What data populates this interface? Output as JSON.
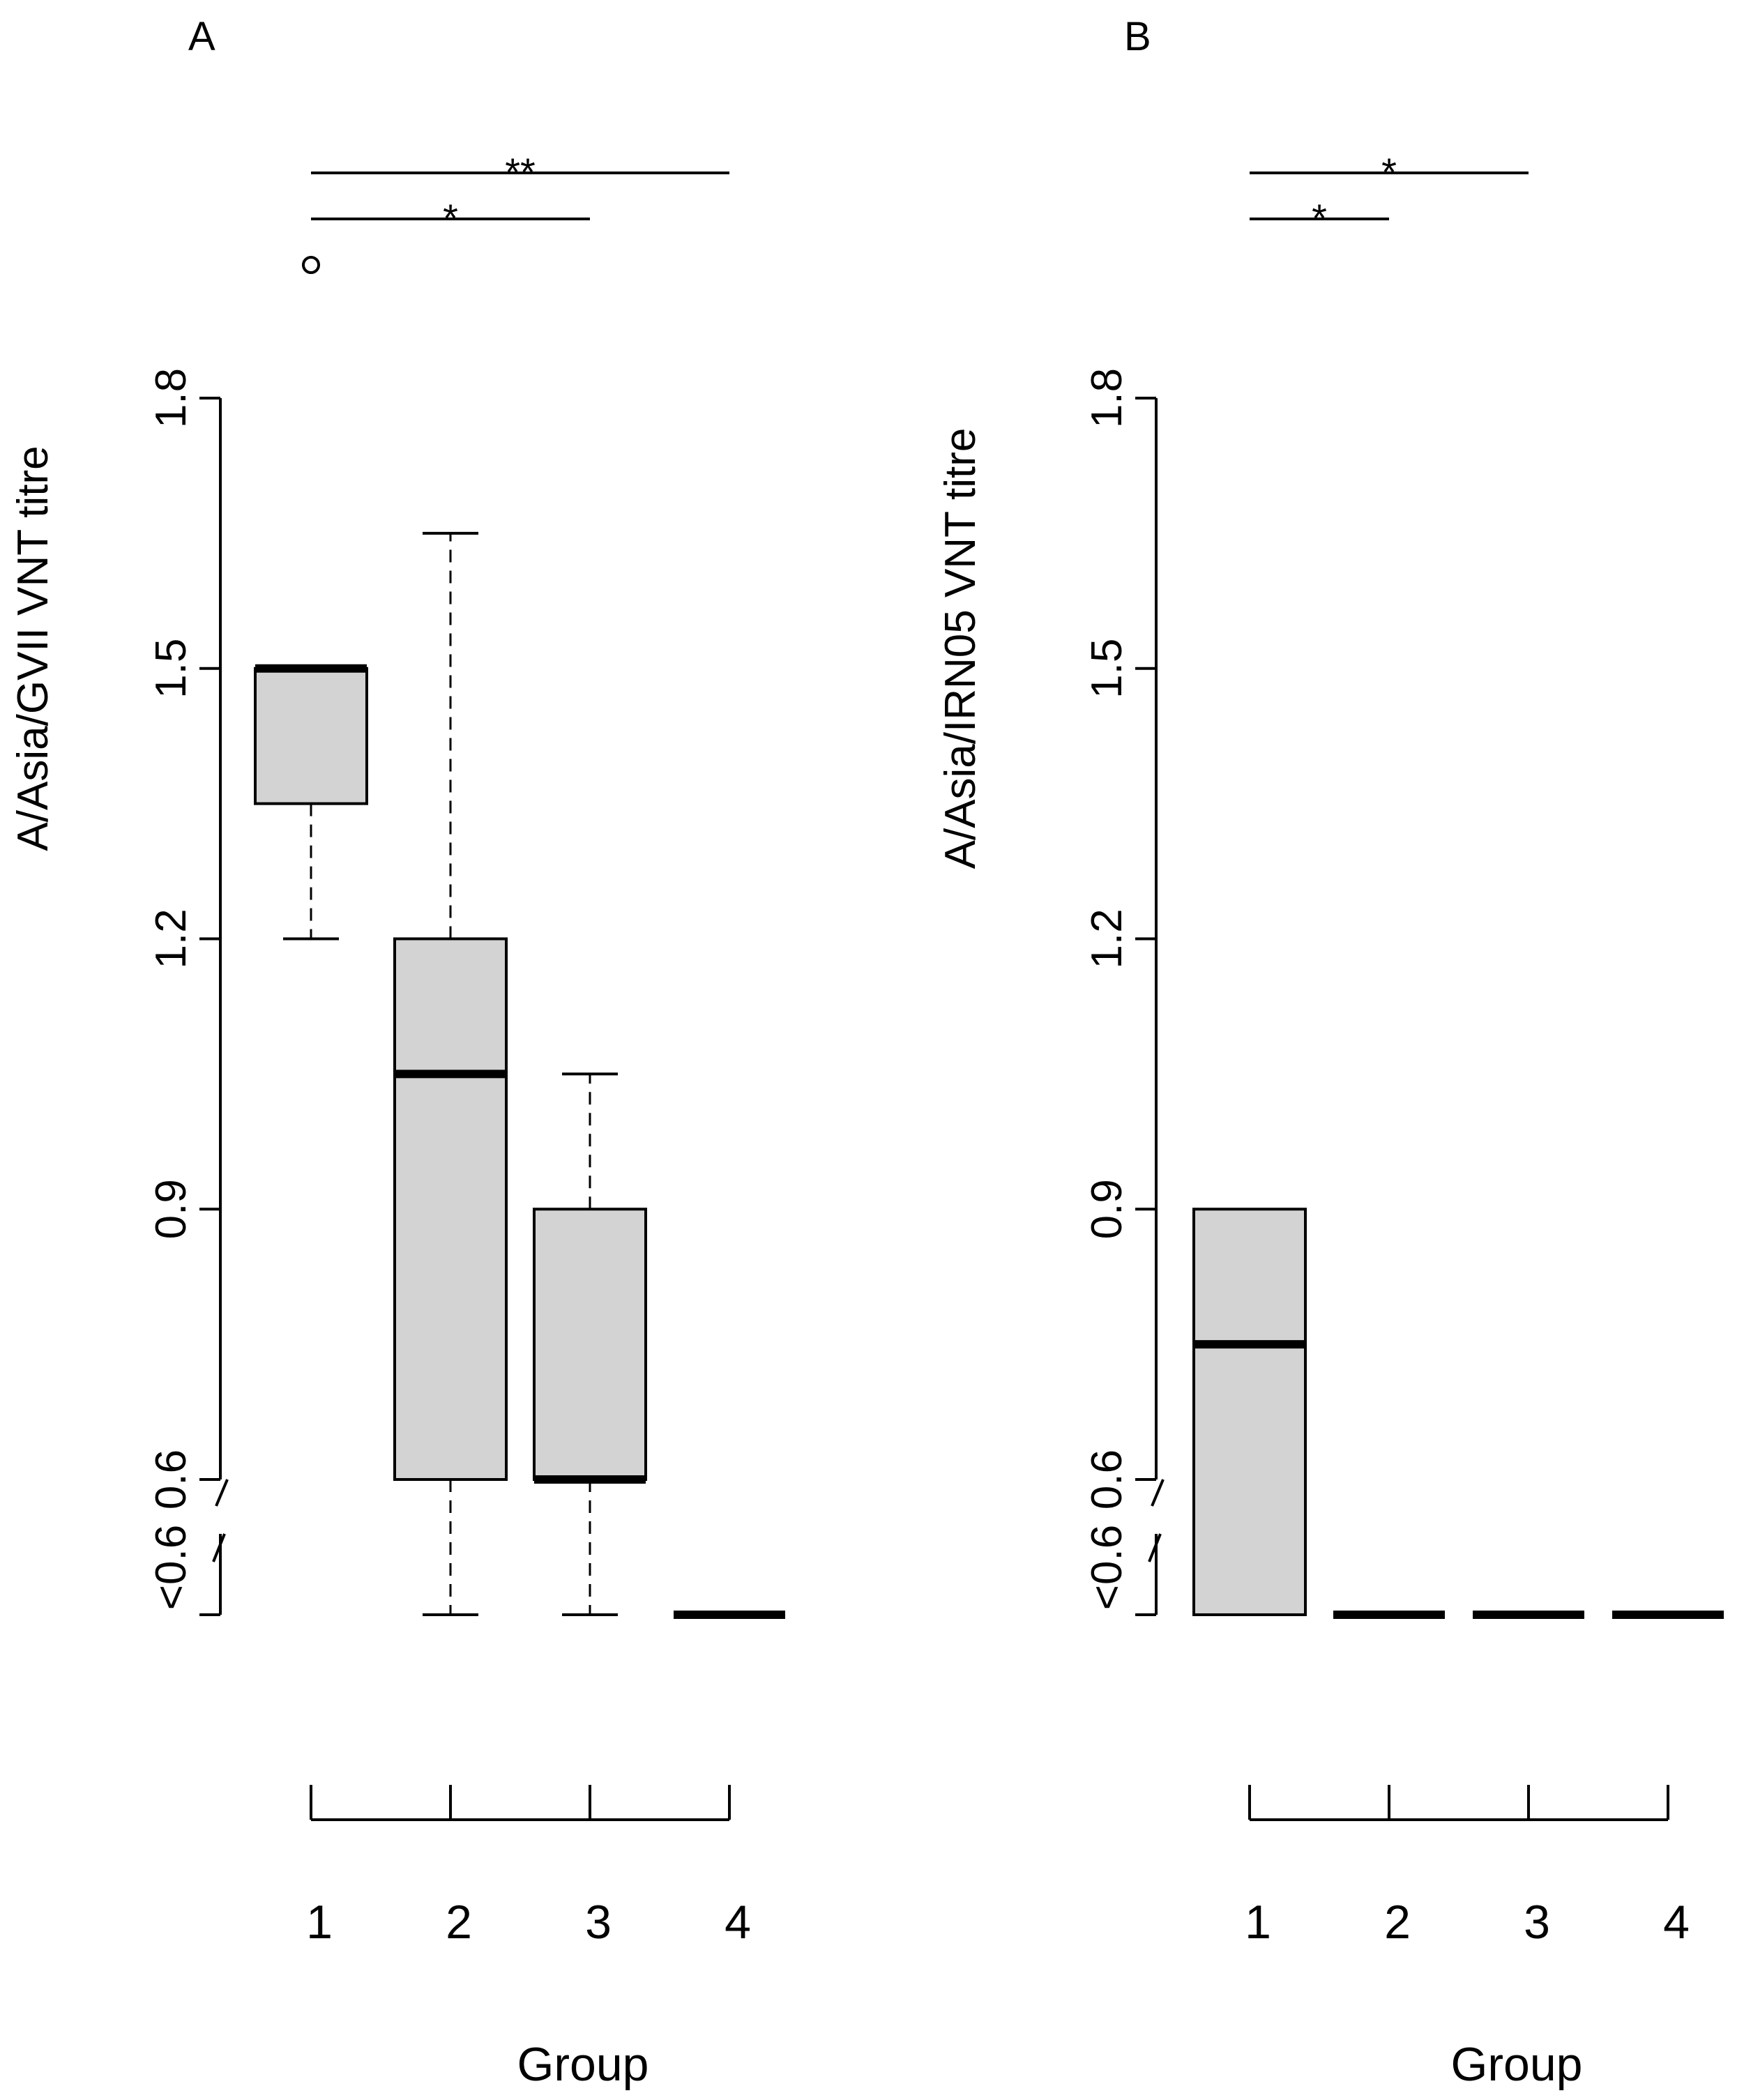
{
  "chart_data": [
    {
      "panel_label": "A",
      "type": "boxplot",
      "ylabel": "A/Asia/GVII VNT titre",
      "xlabel": "Group",
      "categories": [
        "1",
        "2",
        "3",
        "4"
      ],
      "y_ticks": [
        0.6,
        0.9,
        1.2,
        1.5,
        1.8
      ],
      "y_tick_labels": [
        "0.6",
        "0.9",
        "1.2",
        "1.5",
        "1.8"
      ],
      "below_limit_label": "<0.6",
      "axis_break": true,
      "boxes": [
        {
          "group": "1",
          "whisker_low": 1.2,
          "q1": 1.35,
          "median": 1.5,
          "q3": 1.5,
          "whisker_high": 1.5,
          "outliers": [
            1.95
          ]
        },
        {
          "group": "2",
          "whisker_low": 0.45,
          "q1": 0.6,
          "median": 1.05,
          "q3": 1.2,
          "whisker_high": 1.65,
          "outliers": []
        },
        {
          "group": "3",
          "whisker_low": 0.45,
          "q1": 0.6,
          "median": 0.6,
          "q3": 0.9,
          "whisker_high": 1.05,
          "outliers": []
        },
        {
          "group": "4",
          "whisker_low": 0.45,
          "q1": 0.45,
          "median": 0.45,
          "q3": 0.45,
          "whisker_high": 0.45,
          "outliers": []
        }
      ],
      "significance": [
        {
          "from": "1",
          "to": "3",
          "label": "*"
        },
        {
          "from": "1",
          "to": "4",
          "label": "**"
        }
      ]
    },
    {
      "panel_label": "B",
      "type": "boxplot",
      "ylabel": "A/Asia/IRN05 VNT titre",
      "xlabel": "Group",
      "categories": [
        "1",
        "2",
        "3",
        "4"
      ],
      "y_ticks": [
        0.6,
        0.9,
        1.2,
        1.5,
        1.8
      ],
      "y_tick_labels": [
        "0.6",
        "0.9",
        "1.2",
        "1.5",
        "1.8"
      ],
      "below_limit_label": "<0.6",
      "axis_break": true,
      "boxes": [
        {
          "group": "1",
          "whisker_low": 0.45,
          "q1": 0.45,
          "median": 0.75,
          "q3": 0.9,
          "whisker_high": 0.9,
          "outliers": []
        },
        {
          "group": "2",
          "whisker_low": 0.45,
          "q1": 0.45,
          "median": 0.45,
          "q3": 0.45,
          "whisker_high": 0.45,
          "outliers": []
        },
        {
          "group": "3",
          "whisker_low": 0.45,
          "q1": 0.45,
          "median": 0.45,
          "q3": 0.45,
          "whisker_high": 0.45,
          "outliers": []
        },
        {
          "group": "4",
          "whisker_low": 0.45,
          "q1": 0.45,
          "median": 0.45,
          "q3": 0.45,
          "whisker_high": 0.45,
          "outliers": []
        }
      ],
      "significance": [
        {
          "from": "1",
          "to": "2",
          "label": "*"
        },
        {
          "from": "1",
          "to": "3",
          "label": "*"
        }
      ]
    }
  ]
}
